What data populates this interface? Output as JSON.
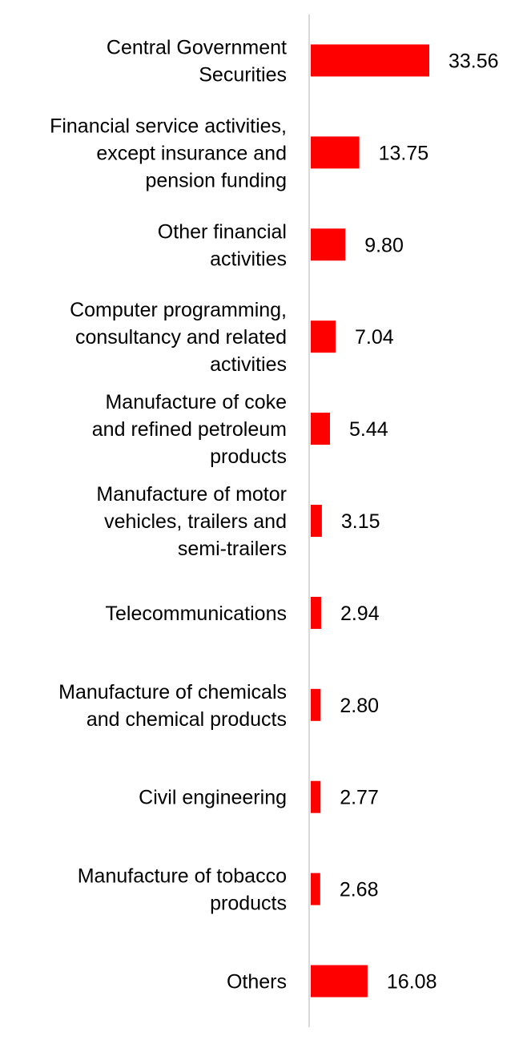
{
  "chart_data": {
    "type": "bar",
    "orientation": "horizontal",
    "categories": [
      [
        "Central Government",
        "Securities"
      ],
      [
        "Financial service activities,",
        "except insurance and",
        "pension funding"
      ],
      [
        "Other financial",
        "activities"
      ],
      [
        "Computer programming,",
        "consultancy and related",
        "activities"
      ],
      [
        "Manufacture of coke",
        "and refined petroleum",
        "products"
      ],
      [
        "Manufacture of motor",
        "vehicles, trailers and",
        "semi-trailers"
      ],
      [
        "Telecommunications"
      ],
      [
        "Manufacture of chemicals",
        "and chemical products"
      ],
      [
        "Civil engineering"
      ],
      [
        "Manufacture of tobacco",
        "products"
      ],
      [
        "Others"
      ]
    ],
    "values": [
      33.56,
      13.75,
      9.8,
      7.04,
      5.44,
      3.15,
      2.94,
      2.8,
      2.77,
      2.68,
      16.08
    ],
    "value_labels": [
      "33.56",
      "13.75",
      "9.80",
      "7.04",
      "5.44",
      "3.15",
      "2.94",
      "2.80",
      "2.77",
      "2.68",
      "16.08"
    ],
    "xlim": [
      0,
      33.56
    ],
    "bar_color": "#ff0000",
    "axis_color": "#d9d9d9",
    "grid": false,
    "legend": false
  }
}
